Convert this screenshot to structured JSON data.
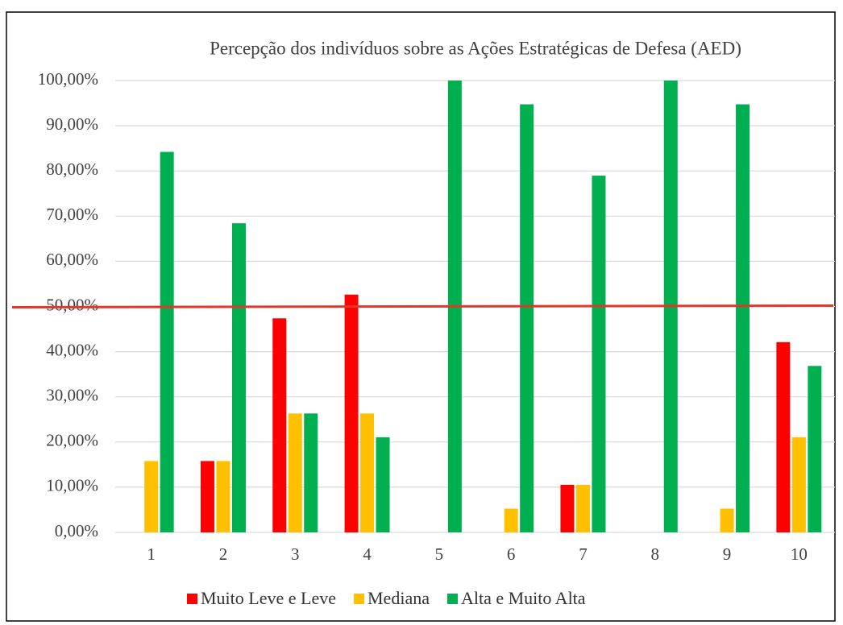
{
  "chart_data": {
    "type": "bar",
    "title": "Percepção dos indivíduos sobre as Ações Estratégicas de Defesa (AED)",
    "categories": [
      "1",
      "2",
      "3",
      "4",
      "5",
      "6",
      "7",
      "8",
      "9",
      "10"
    ],
    "series": [
      {
        "name": "Muito Leve e Leve",
        "color": "#ff0000",
        "values": [
          0,
          15.79,
          47.37,
          52.63,
          0,
          0,
          10.53,
          0,
          0,
          42.11
        ]
      },
      {
        "name": "Mediana",
        "color": "#ffc000",
        "values": [
          15.79,
          15.79,
          26.32,
          26.32,
          0,
          5.26,
          10.53,
          0,
          5.26,
          21.05
        ]
      },
      {
        "name": "Alta e Muito Alta",
        "color": "#00b050",
        "values": [
          84.21,
          68.42,
          26.32,
          21.05,
          100,
          94.74,
          78.95,
          100,
          94.74,
          36.84
        ]
      }
    ],
    "ylim": [
      0,
      100
    ],
    "yticks": [
      {
        "value": 0,
        "label": "0,00%"
      },
      {
        "value": 10,
        "label": "10,00%"
      },
      {
        "value": 20,
        "label": "20,00%"
      },
      {
        "value": 30,
        "label": "30,00%"
      },
      {
        "value": 40,
        "label": "40,00%"
      },
      {
        "value": 50,
        "label": "50,00%"
      },
      {
        "value": 60,
        "label": "60,00%"
      },
      {
        "value": 70,
        "label": "70,00%"
      },
      {
        "value": 80,
        "label": "80,00%"
      },
      {
        "value": 90,
        "label": "90,00%"
      },
      {
        "value": 100,
        "label": "100,00%"
      }
    ],
    "grid": true,
    "legend": "bottom",
    "reference_line": {
      "value": 50,
      "color": "#e0392b"
    }
  }
}
